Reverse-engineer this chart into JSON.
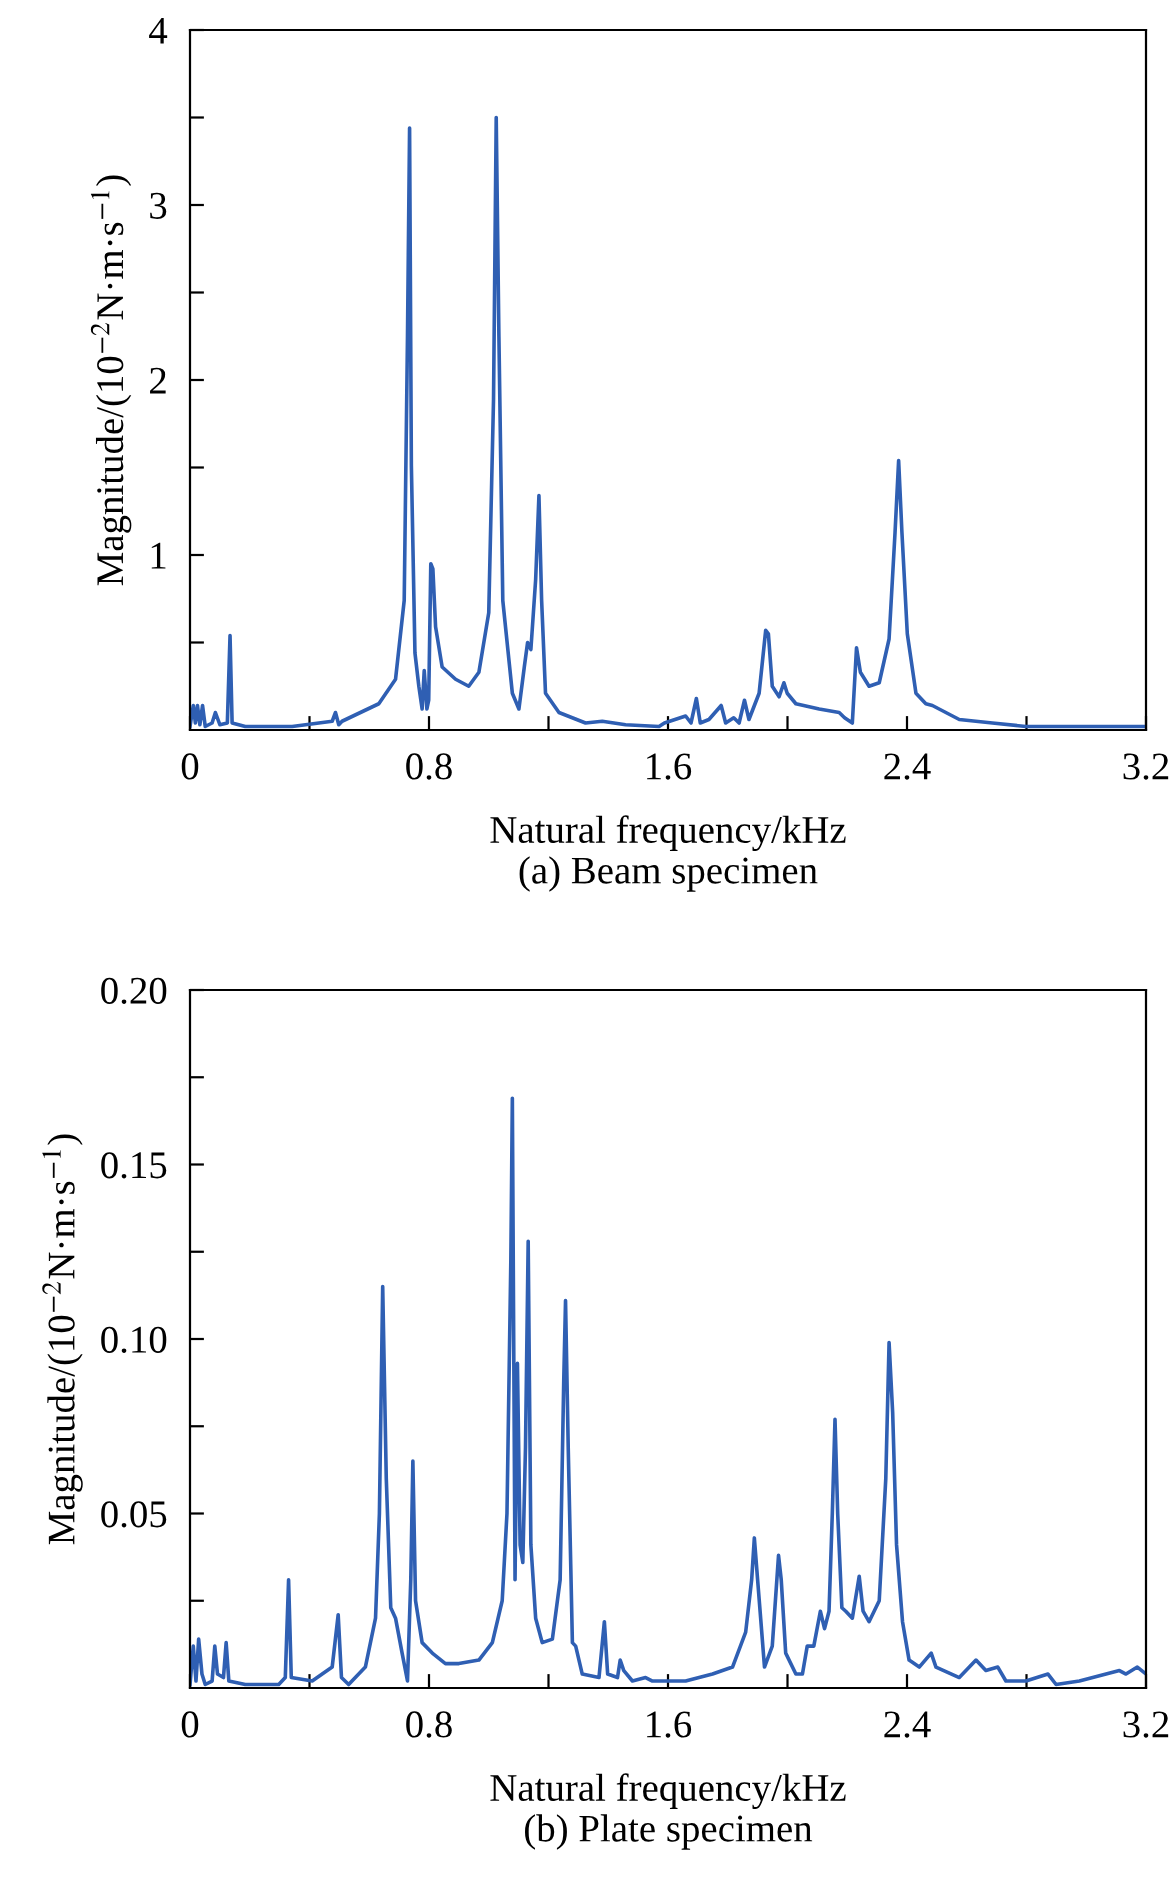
{
  "chart_data": [
    {
      "type": "line",
      "xlabel": "Natural frequency/kHz",
      "ylabel": "Magnitude/(10$^{−2}$N·m·s$^{−1}$)",
      "annotations": [
        "(a) Beam specimen"
      ],
      "xlim": [
        0,
        3.2
      ],
      "ylim": [
        0,
        4
      ],
      "xticks": [
        0,
        {
          "value": 0.4,
          "label": null
        },
        0.8,
        {
          "value": 1.2,
          "label": null
        },
        1.6,
        {
          "value": 2.0,
          "label": null
        },
        2.4,
        {
          "value": 2.8,
          "label": null
        },
        3.2
      ],
      "yticks": [
        {
          "value": 0.5,
          "label": null
        },
        1,
        {
          "value": 1.5,
          "label": null
        },
        2,
        {
          "value": 2.5,
          "label": null
        },
        3,
        {
          "value": 3.5,
          "label": null
        },
        4
      ],
      "grid": false,
      "marker": "none",
      "line_style": "solid",
      "series": [
        {
          "color": "#2f5fb3",
          "x": [
            0,
            0.011,
            0.018,
            0.025,
            0.033,
            0.042,
            0.051,
            0.074,
            0.085,
            0.1,
            0.125,
            0.134,
            0.141,
            0.185,
            0.342,
            0.476,
            0.487,
            0.498,
            0.509,
            0.632,
            0.688,
            0.717,
            0.728,
            0.735,
            0.741,
            0.753,
            0.766,
            0.777,
            0.784,
            0.793,
            0.799,
            0.806,
            0.813,
            0.822,
            0.844,
            0.889,
            0.911,
            0.933,
            0.967,
            1.0,
            1.016,
            1.025,
            1.034,
            1.047,
            1.079,
            1.101,
            1.119,
            1.13,
            1.141,
            1.157,
            1.168,
            1.177,
            1.19,
            1.235,
            1.324,
            1.38,
            1.458,
            1.57,
            1.588,
            1.659,
            1.677,
            1.695,
            1.708,
            1.737,
            1.778,
            1.793,
            1.82,
            1.838,
            1.856,
            1.871,
            1.905,
            1.927,
            1.936,
            1.949,
            1.972,
            1.988,
            1.999,
            2.028,
            2.106,
            2.173,
            2.191,
            2.217,
            2.231,
            2.244,
            2.273,
            2.307,
            2.34,
            2.36,
            2.372,
            2.383,
            2.401,
            2.43,
            2.463,
            2.485,
            2.575,
            2.686,
            2.798,
            3.021,
            3.2
          ],
          "values": [
            0.02,
            0.14,
            0.04,
            0.14,
            0.03,
            0.14,
            0.02,
            0.04,
            0.1,
            0.03,
            0.04,
            0.54,
            0.04,
            0.02,
            0.02,
            0.05,
            0.1,
            0.03,
            0.05,
            0.15,
            0.29,
            0.74,
            2.25,
            3.44,
            1.51,
            0.44,
            0.25,
            0.12,
            0.34,
            0.12,
            0.17,
            0.95,
            0.92,
            0.59,
            0.36,
            0.29,
            0.27,
            0.25,
            0.33,
            0.67,
            1.89,
            3.5,
            2.25,
            0.74,
            0.21,
            0.12,
            0.36,
            0.5,
            0.46,
            0.86,
            1.34,
            0.74,
            0.21,
            0.1,
            0.04,
            0.05,
            0.03,
            0.02,
            0.04,
            0.08,
            0.04,
            0.18,
            0.04,
            0.06,
            0.14,
            0.04,
            0.07,
            0.04,
            0.17,
            0.06,
            0.21,
            0.57,
            0.55,
            0.25,
            0.19,
            0.27,
            0.21,
            0.15,
            0.12,
            0.1,
            0.07,
            0.04,
            0.47,
            0.33,
            0.25,
            0.27,
            0.52,
            1.13,
            1.54,
            1.13,
            0.55,
            0.21,
            0.15,
            0.14,
            0.06,
            0.04,
            0.02,
            0.02,
            0.02
          ]
        }
      ]
    },
    {
      "type": "line",
      "xlabel": "Natural frequency/kHz",
      "ylabel": "Magnitude/(10$^{−2}$N·m·s$^{−1}$)",
      "annotations": [
        "(b) Plate specimen"
      ],
      "xlim": [
        0,
        3.2
      ],
      "ylim": [
        0,
        0.2
      ],
      "xticks": [
        0,
        {
          "value": 0.4,
          "label": null
        },
        0.8,
        {
          "value": 1.2,
          "label": null
        },
        1.6,
        {
          "value": 2.0,
          "label": null
        },
        2.4,
        {
          "value": 2.8,
          "label": null
        },
        3.2
      ],
      "yticks": [
        {
          "value": 0.025,
          "label": null
        },
        {
          "value": 0.05,
          "label": "0.05"
        },
        {
          "value": 0.075,
          "label": null
        },
        {
          "value": 0.1,
          "label": "0.10"
        },
        {
          "value": 0.125,
          "label": null
        },
        {
          "value": 0.15,
          "label": "0.15"
        },
        {
          "value": 0.175,
          "label": null
        },
        {
          "value": 0.2,
          "label": "0.20"
        }
      ],
      "grid": false,
      "marker": "none",
      "line_style": "solid",
      "series": [
        {
          "color": "#2f5fb3",
          "x": [
            0,
            0.011,
            0.02,
            0.029,
            0.04,
            0.051,
            0.074,
            0.083,
            0.092,
            0.112,
            0.121,
            0.13,
            0.185,
            0.297,
            0.319,
            0.33,
            0.339,
            0.409,
            0.476,
            0.496,
            0.507,
            0.531,
            0.587,
            0.621,
            0.634,
            0.645,
            0.657,
            0.672,
            0.688,
            0.71,
            0.728,
            0.739,
            0.746,
            0.755,
            0.777,
            0.811,
            0.855,
            0.9,
            0.967,
            1.012,
            1.045,
            1.061,
            1.074,
            1.079,
            1.088,
            1.096,
            1.105,
            1.114,
            1.123,
            1.132,
            1.141,
            1.157,
            1.179,
            1.213,
            1.239,
            1.251,
            1.257,
            1.266,
            1.28,
            1.291,
            1.313,
            1.369,
            1.387,
            1.398,
            1.431,
            1.44,
            1.452,
            1.481,
            1.525,
            1.548,
            1.659,
            1.704,
            1.749,
            1.816,
            1.86,
            1.88,
            1.889,
            1.9,
            1.923,
            1.949,
            1.97,
            1.979,
            1.994,
            2.028,
            2.05,
            2.066,
            2.088,
            2.11,
            2.124,
            2.139,
            2.15,
            2.159,
            2.168,
            2.182,
            2.195,
            2.217,
            2.24,
            2.253,
            2.273,
            2.307,
            2.329,
            2.34,
            2.352,
            2.365,
            2.385,
            2.407,
            2.441,
            2.481,
            2.497,
            2.575,
            2.631,
            2.664,
            2.704,
            2.731,
            2.798,
            2.872,
            2.899,
            2.977,
            3.111,
            3.133,
            3.171,
            3.2
          ],
          "values": [
            0.001,
            0.012,
            0.002,
            0.014,
            0.004,
            0.001,
            0.002,
            0.012,
            0.004,
            0.003,
            0.013,
            0.002,
            0.001,
            0.001,
            0.003,
            0.031,
            0.003,
            0.002,
            0.006,
            0.021,
            0.003,
            0.001,
            0.006,
            0.02,
            0.05,
            0.115,
            0.06,
            0.023,
            0.02,
            0.01,
            0.002,
            0.031,
            0.065,
            0.025,
            0.013,
            0.01,
            0.007,
            0.007,
            0.008,
            0.013,
            0.025,
            0.05,
            0.123,
            0.169,
            0.031,
            0.093,
            0.041,
            0.036,
            0.069,
            0.128,
            0.041,
            0.02,
            0.013,
            0.014,
            0.031,
            0.088,
            0.111,
            0.069,
            0.013,
            0.012,
            0.004,
            0.003,
            0.019,
            0.004,
            0.003,
            0.008,
            0.005,
            0.002,
            0.003,
            0.002,
            0.002,
            0.003,
            0.004,
            0.006,
            0.016,
            0.031,
            0.043,
            0.031,
            0.006,
            0.012,
            0.038,
            0.031,
            0.01,
            0.004,
            0.004,
            0.012,
            0.012,
            0.022,
            0.017,
            0.022,
            0.05,
            0.077,
            0.05,
            0.023,
            0.022,
            0.02,
            0.032,
            0.022,
            0.019,
            0.025,
            0.06,
            0.099,
            0.079,
            0.041,
            0.019,
            0.008,
            0.006,
            0.01,
            0.006,
            0.003,
            0.008,
            0.005,
            0.006,
            0.002,
            0.002,
            0.004,
            0.001,
            0.002,
            0.005,
            0.004,
            0.006,
            0.004
          ]
        }
      ]
    }
  ]
}
